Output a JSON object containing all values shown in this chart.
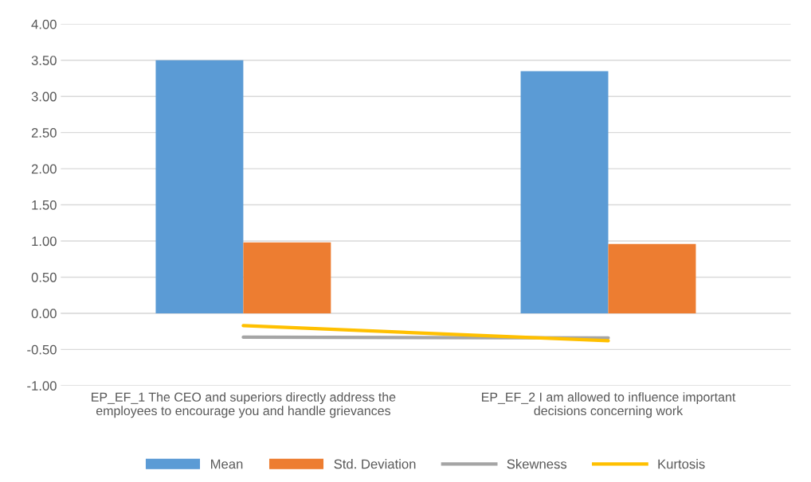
{
  "chart_data": {
    "type": "bar",
    "categories": [
      "EP_EF_1 The CEO and superiors directly address the employees to encourage you and handle grievances",
      "EP_EF_2 I am allowed to influence important decisions concerning work"
    ],
    "series": [
      {
        "name": "Mean",
        "color": "#5b9bd5",
        "values": [
          3.5,
          3.35
        ]
      },
      {
        "name": "Std. Deviation",
        "color": "#ed7d31",
        "values": [
          0.98,
          0.96
        ]
      },
      {
        "name": "Skewness",
        "color": "#a5a5a5",
        "type": "line",
        "values": [
          -0.33,
          -0.34
        ]
      },
      {
        "name": "Kurtosis",
        "color": "#ffc000",
        "type": "line",
        "values": [
          -0.17,
          -0.38
        ]
      }
    ],
    "ylim": [
      -1.0,
      4.0
    ],
    "yticks": [
      {
        "value": -1.0,
        "label": "-1.00"
      },
      {
        "value": -0.5,
        "label": "-0.50"
      },
      {
        "value": 0.0,
        "label": "0.00"
      },
      {
        "value": 0.5,
        "label": "0.50"
      },
      {
        "value": 1.0,
        "label": "1.00"
      },
      {
        "value": 1.5,
        "label": "1.50"
      },
      {
        "value": 2.0,
        "label": "2.00"
      },
      {
        "value": 2.5,
        "label": "2.50"
      },
      {
        "value": 3.0,
        "label": "3.00"
      },
      {
        "value": 3.5,
        "label": "3.50"
      },
      {
        "value": 4.0,
        "label": "4.00"
      }
    ],
    "grid": "y",
    "legend": "bottom",
    "marker": "none"
  }
}
